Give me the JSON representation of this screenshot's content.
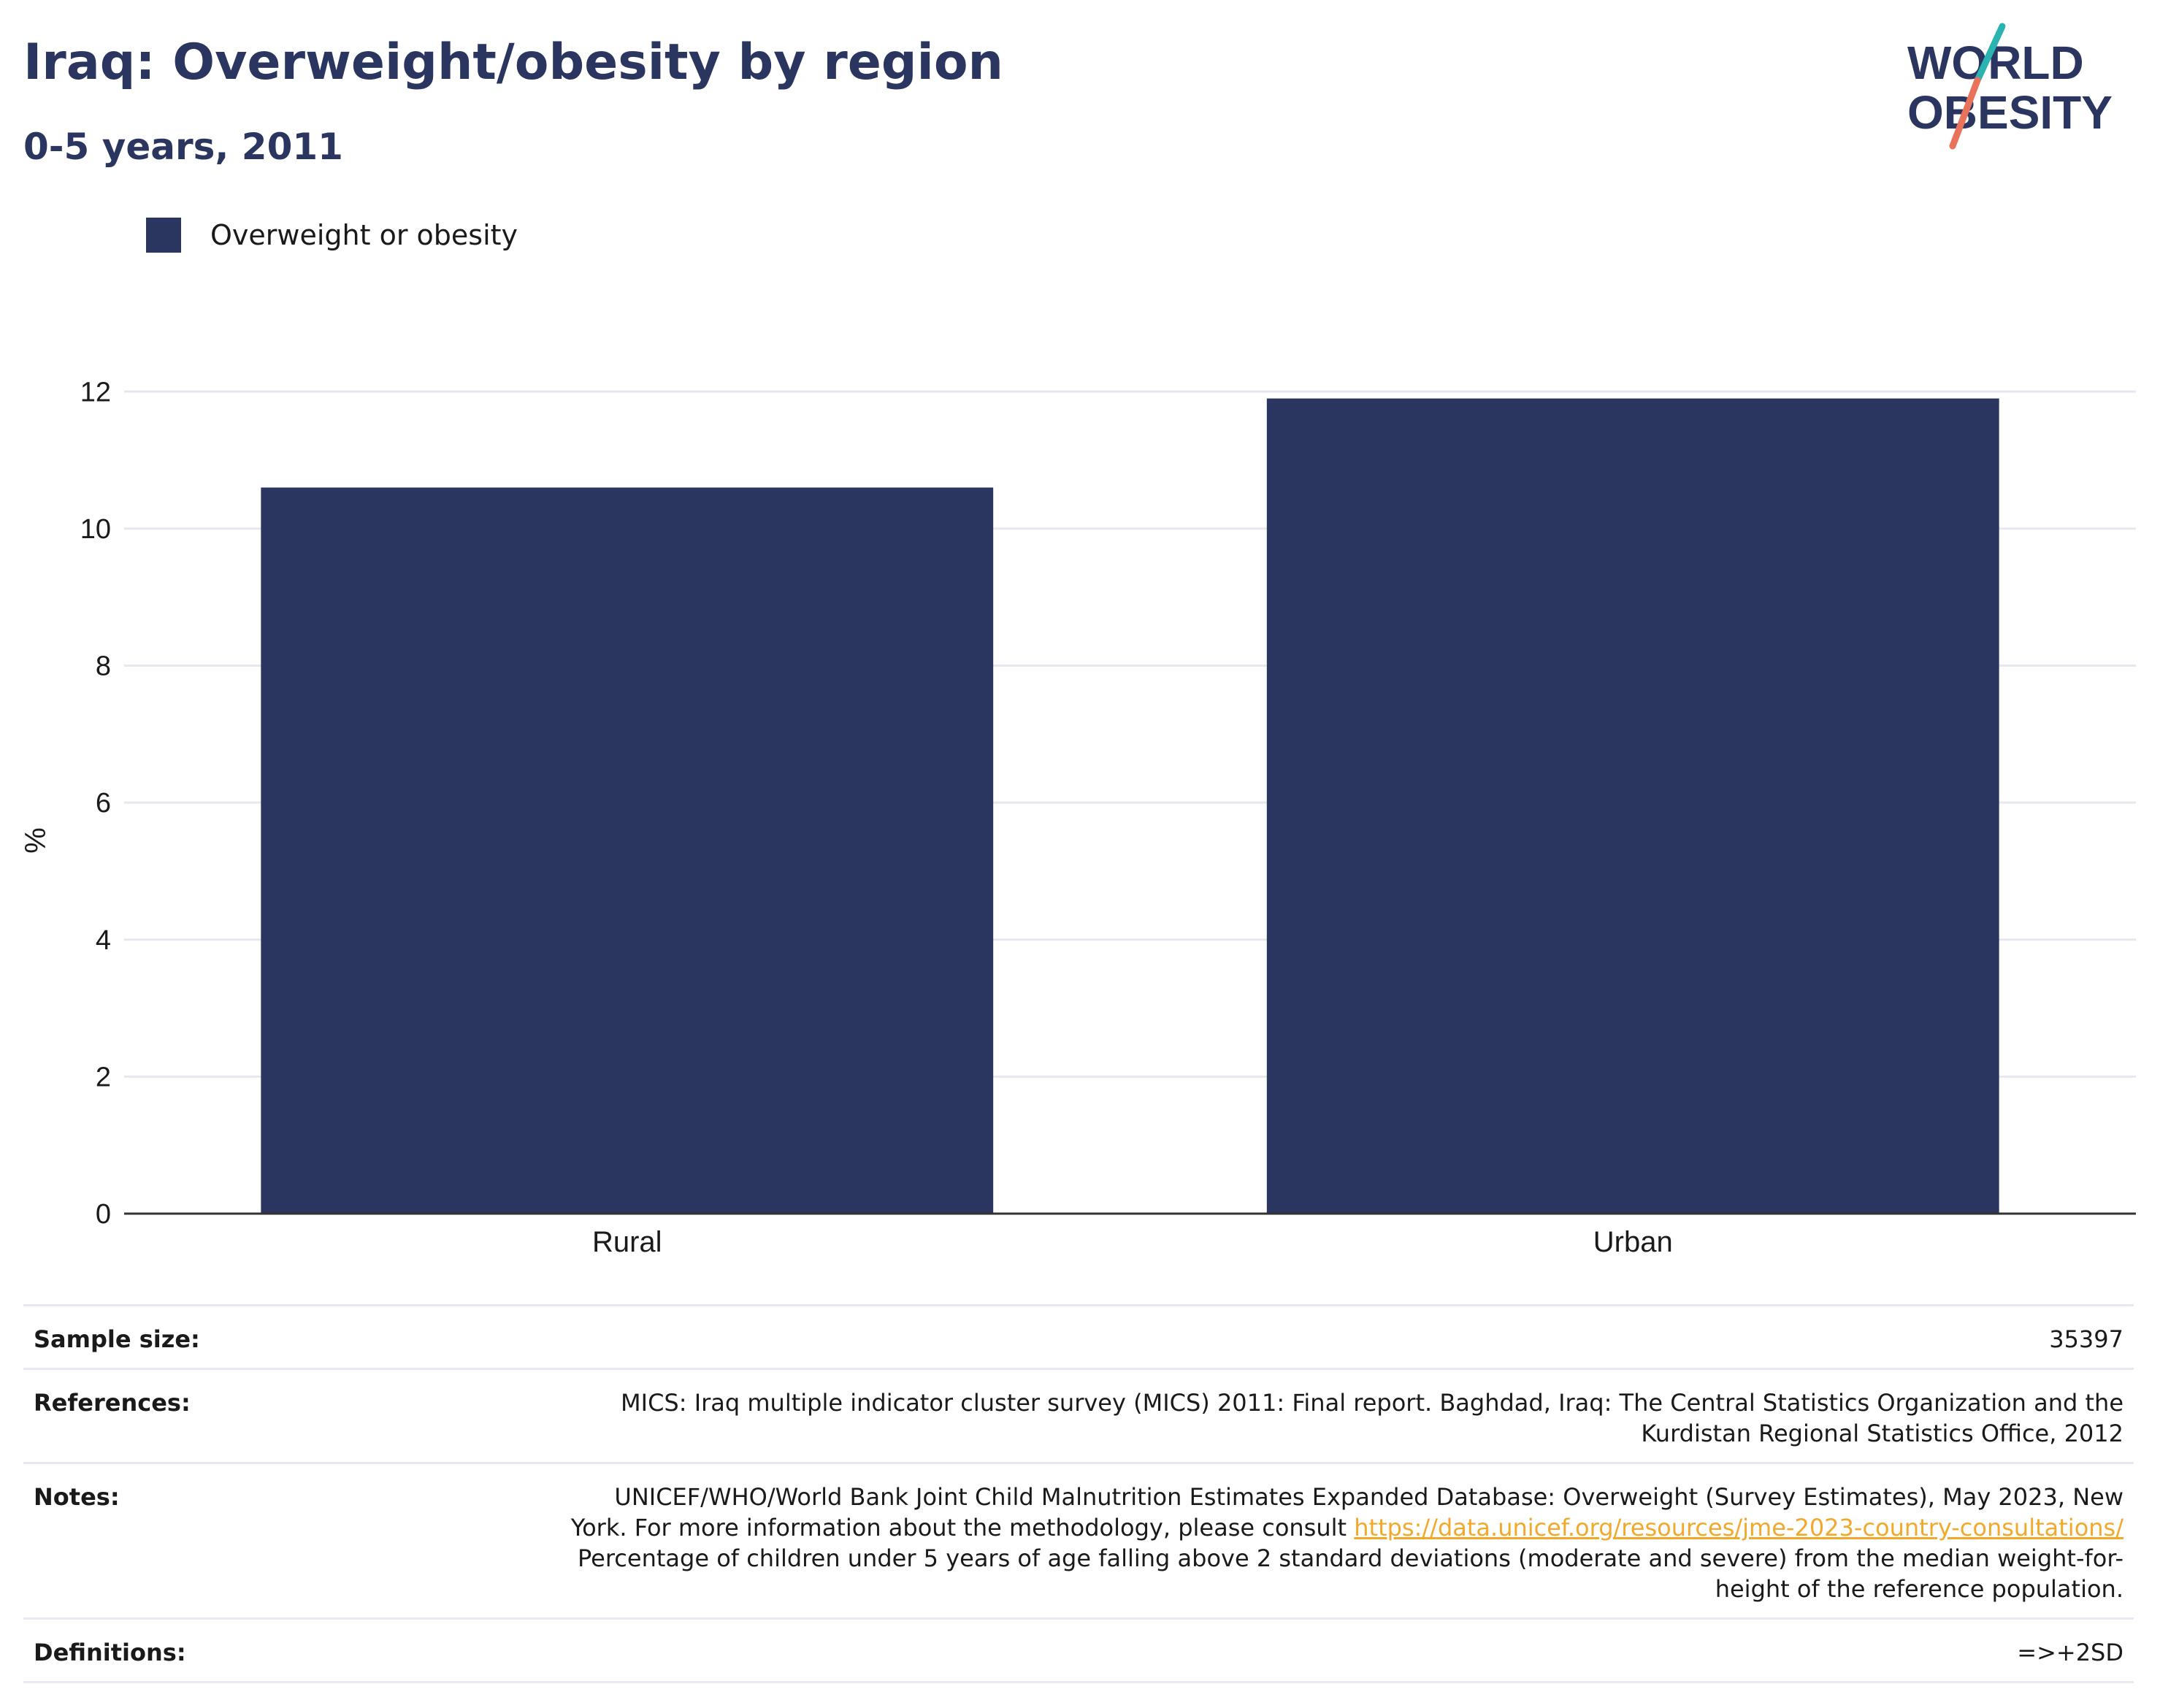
{
  "header": {
    "title": "Iraq: Overweight/obesity by region",
    "subtitle": "0-5 years, 2011"
  },
  "logo": {
    "line1": "WORLD",
    "line2": "OBESITY",
    "colors": {
      "text": "#2b3660",
      "slash_top": "#2ab3b1",
      "slash_bottom": "#e8735a"
    }
  },
  "legend": {
    "label": "Overweight or obesity",
    "color": "#2b3660"
  },
  "chart_data": {
    "type": "bar",
    "categories": [
      "Rural",
      "Urban"
    ],
    "series": [
      {
        "name": "Overweight or obesity",
        "values": [
          10.6,
          11.9
        ],
        "color": "#2b3660"
      }
    ],
    "ylabel": "%",
    "xlabel": "",
    "ylim": [
      0,
      12.6
    ],
    "yticks": [
      0,
      2,
      4,
      6,
      8,
      10,
      12
    ],
    "grid": true
  },
  "info": {
    "sample_size": {
      "label": "Sample size:",
      "value": "35397"
    },
    "references": {
      "label": "References:",
      "line1": "MICS: Iraq multiple indicator cluster survey (MICS) 2011: Final report. Baghdad, Iraq: The Central Statistics Organization and the",
      "line2": "Kurdistan Regional Statistics Office, 2012"
    },
    "notes": {
      "label": "Notes:",
      "line1": "UNICEF/WHO/World Bank Joint Child Malnutrition Estimates Expanded Database: Overweight (Survey Estimates), May 2023, New",
      "line2_prefix": "York. For more information about the methodology, please consult",
      "link": "https://data.unicef.org/resources/jme-2023-country-consultations/",
      "line3": "Percentage of children under 5 years of age falling above 2 standard deviations (moderate and severe) from the median weight-for-",
      "line4": "height of the reference population."
    },
    "definitions": {
      "label": "Definitions:",
      "value": "=>+2SD"
    }
  }
}
